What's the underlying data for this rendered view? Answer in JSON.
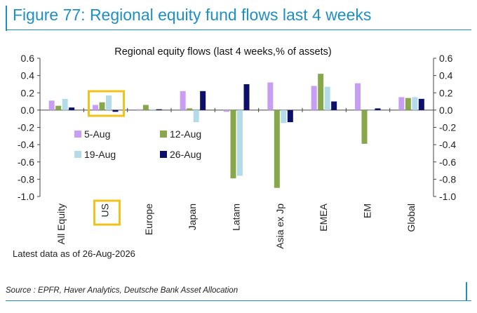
{
  "figure": {
    "title": "Figure 77: Regional equity fund flows last 4 weeks",
    "note": "Latest data as of 26-Aug-2026",
    "source": "Source : EPFR, Haver Analytics, Deutsche Bank Asset Allocation"
  },
  "chart_data": {
    "type": "bar",
    "title": "Regional equity flows (last 4 weeks,% of assets)",
    "categories": [
      "All Equity",
      "US",
      "Europe",
      "Japan",
      "Latam",
      "Asia ex Jp",
      "EMEA",
      "EM",
      "Global"
    ],
    "series": [
      {
        "name": "5-Aug",
        "color": "#c79ef2",
        "values": [
          0.11,
          0.06,
          0.0,
          0.22,
          -0.02,
          0.32,
          0.28,
          0.31,
          0.15
        ]
      },
      {
        "name": "12-Aug",
        "color": "#86a84a",
        "values": [
          0.05,
          0.09,
          0.06,
          0.02,
          -0.79,
          -0.9,
          0.42,
          -0.39,
          0.14
        ]
      },
      {
        "name": "19-Aug",
        "color": "#b4dbe9",
        "values": [
          0.13,
          0.17,
          0.01,
          -0.14,
          -0.76,
          -0.15,
          0.27,
          -0.01,
          0.15
        ]
      },
      {
        "name": "26-Aug",
        "color": "#0d0f6b",
        "values": [
          0.03,
          -0.02,
          0.0,
          0.22,
          0.3,
          -0.14,
          0.1,
          0.02,
          0.13
        ]
      }
    ],
    "ylim": [
      -1.0,
      0.6
    ],
    "yticks": [
      "0.6",
      "0.4",
      "0.2",
      "0.0",
      "-0.2",
      "-0.4",
      "-0.6",
      "-0.8",
      "-1.0"
    ],
    "secondary_axis": true,
    "grid": false,
    "legend_position": "left-center, two columns",
    "highlight": {
      "category": "US",
      "color": "#f2c21a"
    }
  }
}
